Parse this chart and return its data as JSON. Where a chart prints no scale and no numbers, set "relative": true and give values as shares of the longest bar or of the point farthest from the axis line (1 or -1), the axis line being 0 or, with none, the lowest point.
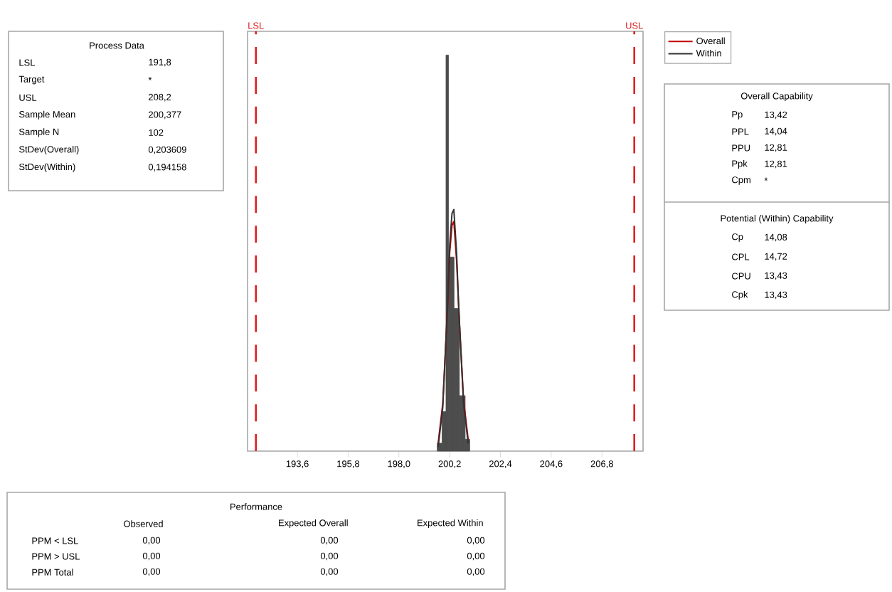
{
  "chart_data": {
    "type": "histogram",
    "relative": true,
    "bins": [
      199.66,
      199.87,
      200.04,
      200.15,
      200.39,
      200.62,
      200.87,
      201.07
    ],
    "values": [
      0.02,
      0.1,
      1,
      0.49,
      0.36,
      0.14,
      0.03
    ],
    "color": "#4d4d4d",
    "series": [
      {
        "name": "Overall",
        "type": "line",
        "color": "#c00000",
        "x": [
          199.7,
          199.9,
          200.1,
          200.2,
          200.3,
          200.38,
          200.5,
          200.6,
          200.8,
          201.0
        ],
        "values": [
          0.02,
          0.12,
          0.35,
          0.5,
          0.57,
          0.58,
          0.48,
          0.35,
          0.13,
          0.03
        ]
      },
      {
        "name": "Within",
        "type": "line",
        "color": "#333333",
        "x": [
          199.7,
          199.9,
          200.1,
          200.2,
          200.3,
          200.38,
          200.5,
          200.6,
          200.8,
          201.0
        ],
        "values": [
          0.01,
          0.11,
          0.36,
          0.52,
          0.6,
          0.61,
          0.5,
          0.35,
          0.12,
          0.02
        ]
      }
    ],
    "xlim": [
      191.44,
      208.58
    ],
    "xticks": [
      {
        "value": 193.6,
        "label": "193,6"
      },
      {
        "value": 195.8,
        "label": "195,8"
      },
      {
        "value": 198.0,
        "label": "198,0"
      },
      {
        "value": 200.2,
        "label": "200,2"
      },
      {
        "value": 202.4,
        "label": "202,4"
      },
      {
        "value": 204.6,
        "label": "204,6"
      },
      {
        "value": 206.8,
        "label": "206,8"
      }
    ],
    "ref_lines": [
      {
        "axis": "x",
        "value": 191.8,
        "label": "LSL",
        "color": "#e02020",
        "line_style": "dashed"
      },
      {
        "axis": "x",
        "value": 208.2,
        "label": "USL",
        "color": "#e02020",
        "line_style": "dashed"
      }
    ],
    "legend": "top right",
    "annotations": [
      "Process Data",
      "LSL",
      "191,8",
      "Target",
      "*",
      "USL",
      "208,2",
      "Sample Mean",
      "200,377",
      "Sample N",
      "102",
      "StDev(Overall)",
      "0,203609",
      "StDev(Within)",
      "0,194158",
      "Overall Capability",
      "Pp",
      "13,42",
      "PPL",
      "14,04",
      "PPU",
      "12,81",
      "Ppk",
      "12,81",
      "Cpm",
      "*",
      "Potential (Within) Capability",
      "Cp",
      "14,08",
      "CPL",
      "14,72",
      "CPU",
      "13,43",
      "Cpk",
      "13,43",
      "Performance",
      "Observed",
      "Expected Overall",
      "Expected Within",
      "PPM < LSL",
      "0,00",
      "0,00",
      "0,00",
      "PPM > USL",
      "0,00",
      "0,00",
      "0,00",
      "PPM Total",
      "0,00",
      "0,00",
      "0,00"
    ]
  }
}
